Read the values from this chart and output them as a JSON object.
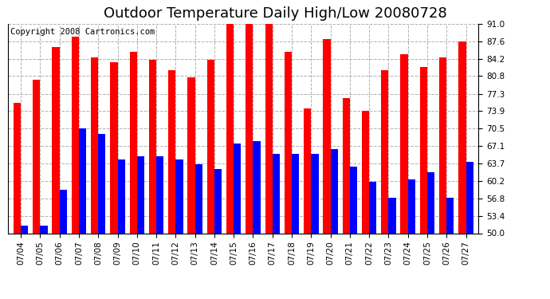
{
  "title": "Outdoor Temperature Daily High/Low 20080728",
  "copyright": "Copyright 2008 Cartronics.com",
  "dates": [
    "07/04",
    "07/05",
    "07/06",
    "07/07",
    "07/08",
    "07/09",
    "07/10",
    "07/11",
    "07/12",
    "07/13",
    "07/14",
    "07/15",
    "07/16",
    "07/17",
    "07/18",
    "07/19",
    "07/20",
    "07/21",
    "07/22",
    "07/23",
    "07/24",
    "07/25",
    "07/26",
    "07/27"
  ],
  "highs": [
    75.5,
    80.0,
    86.5,
    88.5,
    84.5,
    83.5,
    85.5,
    84.0,
    82.0,
    80.5,
    84.0,
    91.0,
    91.0,
    91.0,
    85.5,
    74.5,
    88.0,
    76.5,
    74.0,
    82.0,
    85.0,
    82.5,
    84.5,
    87.5
  ],
  "lows": [
    51.5,
    51.5,
    58.5,
    70.5,
    69.5,
    64.5,
    65.0,
    65.0,
    64.5,
    63.5,
    62.5,
    67.5,
    68.0,
    65.5,
    65.5,
    65.5,
    66.5,
    63.0,
    60.0,
    57.0,
    60.5,
    62.0,
    57.0,
    64.0
  ],
  "high_color": "#ff0000",
  "low_color": "#0000ff",
  "bg_color": "#ffffff",
  "grid_color": "#b0b0b0",
  "ymin": 50.0,
  "ymax": 91.0,
  "yticks": [
    50.0,
    53.4,
    56.8,
    60.2,
    63.7,
    67.1,
    70.5,
    73.9,
    77.3,
    80.8,
    84.2,
    87.6,
    91.0
  ],
  "bar_width": 0.38,
  "title_fontsize": 13,
  "copyright_fontsize": 7.5,
  "tick_fontsize": 7.5
}
